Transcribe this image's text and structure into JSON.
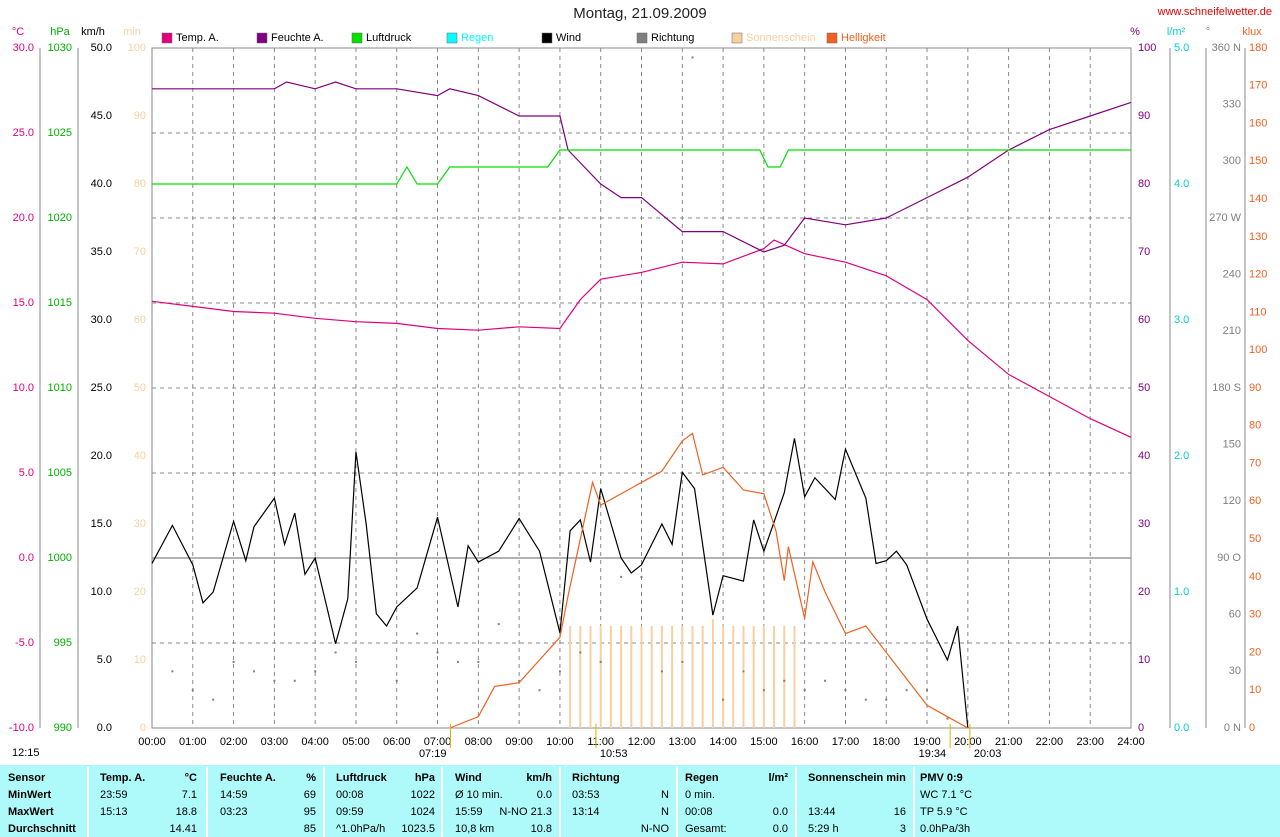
{
  "chart_data": {
    "type": "line",
    "title": "Montag, 21.09.2009",
    "source": "www.schneifelwetter.de",
    "corner_note": "12:15",
    "xlim": [
      0,
      24
    ],
    "xticks": [
      {
        "value": 0,
        "label": "00:00"
      },
      {
        "value": 1,
        "label": "01:00"
      },
      {
        "value": 2,
        "label": "02:00"
      },
      {
        "value": 3,
        "label": "03:00"
      },
      {
        "value": 4,
        "label": "04:00"
      },
      {
        "value": 5,
        "label": "05:00"
      },
      {
        "value": 6,
        "label": "06:00"
      },
      {
        "value": 7,
        "label": "07:00"
      },
      {
        "value": 8,
        "label": "08:00"
      },
      {
        "value": 9,
        "label": "09:00"
      },
      {
        "value": 10,
        "label": "10:00"
      },
      {
        "value": 11,
        "label": "11:00"
      },
      {
        "value": 12,
        "label": "12:00"
      },
      {
        "value": 13,
        "label": "13:00"
      },
      {
        "value": 14,
        "label": "14:00"
      },
      {
        "value": 15,
        "label": "15:00"
      },
      {
        "value": 16,
        "label": "16:00"
      },
      {
        "value": 17,
        "label": "17:00"
      },
      {
        "value": 18,
        "label": "18:00"
      },
      {
        "value": 19,
        "label": "19:00"
      },
      {
        "value": 20,
        "label": "20:00"
      },
      {
        "value": 21,
        "label": "21:00"
      },
      {
        "value": 22,
        "label": "22:00"
      },
      {
        "value": 23,
        "label": "23:00"
      },
      {
        "value": 24,
        "label": "24:00"
      }
    ],
    "grid": true,
    "annotations": [
      {
        "text": "07:19",
        "x": 7.317
      },
      {
        "text": "10:53",
        "x": 10.883
      },
      {
        "text": "19:34",
        "x": 19.567
      },
      {
        "text": "20:03",
        "x": 20.05
      }
    ],
    "axes": [
      {
        "label": "°C",
        "color": "#e0007f",
        "lim": [
          -10,
          30
        ],
        "ticks": [
          {
            "value": -10,
            "label": "-10.0"
          },
          {
            "value": -5,
            "label": "-5.0"
          },
          {
            "value": 0,
            "label": "0.0"
          },
          {
            "value": 5,
            "label": "5.0"
          },
          {
            "value": 10,
            "label": "10.0"
          },
          {
            "value": 15,
            "label": "15.0"
          },
          {
            "value": 20,
            "label": "20.0"
          },
          {
            "value": 25,
            "label": "25.0"
          },
          {
            "value": 30,
            "label": "30.0"
          }
        ]
      },
      {
        "label": "hPa",
        "color": "#00b000",
        "lim": [
          990,
          1030
        ],
        "ticks": [
          990,
          995,
          1000,
          1005,
          1010,
          1015,
          1020,
          1025,
          1030
        ]
      },
      {
        "label": "km/h",
        "color": "#000000",
        "lim": [
          0,
          50
        ],
        "ticks": [
          {
            "value": 0,
            "label": "0.0"
          },
          {
            "value": 5,
            "label": "5.0"
          },
          {
            "value": 10,
            "label": "10.0"
          },
          {
            "value": 15,
            "label": "15.0"
          },
          {
            "value": 20,
            "label": "20.0"
          },
          {
            "value": 25,
            "label": "25.0"
          },
          {
            "value": 30,
            "label": "30.0"
          },
          {
            "value": 35,
            "label": "35.0"
          },
          {
            "value": 40,
            "label": "40.0"
          },
          {
            "value": 45,
            "label": "45.0"
          },
          {
            "value": 50,
            "label": "50.0"
          }
        ]
      },
      {
        "label": "min",
        "color": "#f8d0a0",
        "lim": [
          0,
          100
        ],
        "ticks": [
          0,
          10,
          20,
          30,
          40,
          50,
          60,
          70,
          80,
          90,
          100
        ]
      },
      {
        "label": "%",
        "color": "#800080",
        "lim": [
          0,
          100
        ],
        "ticks": [
          0,
          10,
          20,
          30,
          40,
          50,
          60,
          70,
          80,
          90,
          100
        ]
      },
      {
        "label": "l/m²",
        "color": "#00d0d0",
        "lim": [
          0,
          5
        ],
        "ticks": [
          {
            "value": 0,
            "label": "0.0"
          },
          {
            "value": 1,
            "label": "1.0"
          },
          {
            "value": 2,
            "label": "2.0"
          },
          {
            "value": 3,
            "label": "3.0"
          },
          {
            "value": 4,
            "label": "4.0"
          },
          {
            "value": 5,
            "label": "5.0"
          }
        ]
      },
      {
        "label": "°",
        "color": "#808080",
        "lim": [
          0,
          360
        ],
        "ticks": [
          {
            "value": 0,
            "label": "0 N"
          },
          30,
          60,
          {
            "value": 90,
            "label": "90 O"
          },
          120,
          150,
          {
            "value": 180,
            "label": "180 S"
          },
          210,
          240,
          {
            "value": 270,
            "label": "270 W"
          },
          300,
          330,
          {
            "value": 360,
            "label": "360 N"
          }
        ]
      },
      {
        "label": "klux",
        "color": "#f06020",
        "lim": [
          0,
          180
        ],
        "ticks": [
          0,
          10,
          20,
          30,
          40,
          50,
          60,
          70,
          80,
          90,
          100,
          110,
          120,
          130,
          140,
          150,
          160,
          170,
          180
        ]
      }
    ],
    "series": [
      {
        "name": "Temp. A.",
        "color": "#e0007f",
        "axis": 0,
        "style": "line",
        "x": [
          0,
          1,
          2,
          3,
          4,
          5,
          6,
          7,
          8,
          9,
          10,
          10.5,
          11,
          12,
          13,
          14,
          15,
          15.25,
          16,
          17,
          18,
          19,
          20,
          21,
          22,
          23,
          24
        ],
        "values": [
          15.1,
          14.8,
          14.5,
          14.4,
          14.1,
          13.9,
          13.8,
          13.5,
          13.4,
          13.6,
          13.5,
          15.2,
          16.4,
          16.8,
          17.4,
          17.3,
          18.2,
          18.7,
          17.9,
          17.4,
          16.6,
          15.2,
          12.8,
          10.8,
          9.5,
          8.2,
          7.1
        ]
      },
      {
        "name": "Feuchte A.",
        "color": "#800080",
        "axis": 4,
        "style": "line",
        "x": [
          0,
          3,
          3.3,
          4,
          4.5,
          5,
          6,
          7,
          7.3,
          8,
          9,
          10,
          10.2,
          11,
          11.5,
          12,
          13,
          14,
          15,
          15.5,
          16,
          17,
          18,
          19,
          20,
          21,
          22,
          23,
          24
        ],
        "values": [
          94,
          94,
          95,
          94,
          95,
          94,
          94,
          93,
          94,
          93,
          90,
          90,
          85,
          80,
          78,
          78,
          73,
          73,
          70,
          71,
          75,
          74,
          75,
          78,
          81,
          85,
          88,
          90,
          92
        ]
      },
      {
        "name": "Luftdruck",
        "color": "#00e000",
        "axis": 1,
        "style": "line",
        "x": [
          0,
          6,
          6.25,
          6.5,
          7,
          7.3,
          9.7,
          10,
          14.9,
          15.1,
          15.4,
          15.6,
          24
        ],
        "values": [
          1022,
          1022,
          1023,
          1022,
          1022,
          1023,
          1023,
          1024,
          1024,
          1023,
          1023,
          1024,
          1024
        ]
      },
      {
        "name": "Regen",
        "color": "#00ffff",
        "axis": 5,
        "style": "line",
        "x": [],
        "values": []
      },
      {
        "name": "Wind",
        "color": "#000000",
        "axis": 2,
        "style": "line",
        "x": [
          0,
          0.5,
          1,
          1.25,
          1.5,
          2,
          2.3,
          2.5,
          3,
          3.25,
          3.5,
          3.75,
          4,
          4.5,
          4.8,
          5,
          5.25,
          5.5,
          5.75,
          6,
          6.5,
          7,
          7.5,
          7.75,
          8,
          8.5,
          9,
          9.5,
          10,
          10.25,
          10.5,
          10.75,
          11,
          11.5,
          11.75,
          12,
          12.5,
          12.75,
          13,
          13.3,
          13.75,
          14,
          14.5,
          14.75,
          15,
          15.5,
          15.75,
          16,
          16.25,
          16.75,
          17,
          17.5,
          17.75,
          18,
          18.25,
          18.5,
          19,
          19.5,
          19.75,
          20
        ],
        "values": [
          12.1,
          14.9,
          12.0,
          9.2,
          10.0,
          15.2,
          12.3,
          14.8,
          16.9,
          13.5,
          15.8,
          11.3,
          12.5,
          6.2,
          9.5,
          20.3,
          15.0,
          8.4,
          7.5,
          8.9,
          10.3,
          15.5,
          8.9,
          13.4,
          12.2,
          13.0,
          15.4,
          13.0,
          7.0,
          14.5,
          15.3,
          12.2,
          17.6,
          12.5,
          11.4,
          12.0,
          15.0,
          13.5,
          18.8,
          17.6,
          8.3,
          11.2,
          10.8,
          15.3,
          13.0,
          17.3,
          21.3,
          17.0,
          18.4,
          16.8,
          20.5,
          16.9,
          12.1,
          12.3,
          13.0,
          12.0,
          8.0,
          5.0,
          7.5,
          0
        ]
      },
      {
        "name": "Richtung",
        "color": "#808080",
        "axis": 6,
        "style": "dots",
        "x": [
          0.5,
          1,
          1.5,
          2,
          2.5,
          3,
          3.5,
          4,
          4.5,
          5,
          6,
          6.5,
          7,
          7.5,
          8,
          8.5,
          9,
          9.5,
          10,
          10.5,
          11,
          11.5,
          12,
          12.5,
          13,
          13.25,
          14,
          14.5,
          15,
          15.5,
          16,
          16.5,
          17,
          17.5,
          18,
          18.5,
          19,
          19.5
        ],
        "values": [
          30,
          20,
          15,
          35,
          30,
          25,
          25,
          30,
          40,
          35,
          25,
          50,
          40,
          35,
          35,
          55,
          25,
          20,
          30,
          40,
          35,
          80,
          80,
          30,
          35,
          355,
          15,
          30,
          20,
          25,
          20,
          25,
          20,
          15,
          15,
          20,
          20,
          5
        ]
      },
      {
        "name": "Sonnenschein",
        "color": "#f8d0a0",
        "axis": 3,
        "style": "bars",
        "x": [
          10.25,
          10.5,
          10.75,
          11,
          11.25,
          11.5,
          11.75,
          12,
          12.25,
          12.5,
          12.75,
          13,
          13.25,
          13.5,
          13.75,
          14,
          14.25,
          14.5,
          14.75,
          15,
          15.25,
          15.5,
          15.75
        ],
        "values": [
          15,
          15,
          15,
          15,
          15,
          15,
          15,
          15,
          15,
          15,
          15,
          15,
          15,
          15,
          16,
          15,
          15,
          15,
          15,
          15,
          15,
          15,
          15
        ]
      },
      {
        "name": "Helligkeit",
        "color": "#f06020",
        "axis": 7,
        "style": "line",
        "x": [
          7.3,
          8,
          8.4,
          9,
          9.5,
          10,
          10.2,
          10.8,
          11,
          11.5,
          12,
          12.5,
          13,
          13.25,
          13.5,
          14,
          14.5,
          15,
          15.3,
          15.5,
          15.6,
          16,
          16.2,
          16.5,
          17,
          17.5,
          18,
          18.5,
          19,
          19.5,
          20
        ],
        "values": [
          0,
          3,
          11,
          12,
          18,
          24,
          35,
          65,
          59,
          62,
          65,
          68,
          76,
          78,
          67,
          69,
          63,
          62,
          52,
          39,
          48,
          29,
          44,
          36,
          25,
          27,
          20,
          13,
          6,
          3,
          0
        ]
      }
    ],
    "table": {
      "rows": [
        [
          "Sensor",
          "Temp. A.",
          "°C",
          "Feuchte A.",
          "%",
          "Luftdruck",
          "hPa",
          "Wind",
          "km/h",
          "Richtung",
          null,
          "Regen",
          "l/m²",
          "Sonnenschein min",
          null,
          "PMV 0:9"
        ],
        [
          "MinWert",
          "23:59",
          "7.1",
          "14:59",
          "69",
          "00:08",
          "1022",
          "Ø 10 min.",
          "0.0",
          "03:53",
          "N",
          "0 min.",
          null,
          null,
          null,
          "WC 7.1 °C"
        ],
        [
          "MaxWert",
          "15:13",
          "18.8",
          "03:23",
          "95",
          "09:59",
          "1024",
          "15:59",
          "N-NO 21.3",
          "13:14",
          "N",
          "00:08",
          "0.0",
          "13:44",
          "16",
          "TP 5.9 °C"
        ],
        [
          "Durchschnitt",
          null,
          "14.41",
          null,
          "85",
          "^1.0hPa/h",
          "1023.5",
          "10,8 km",
          "10.8",
          null,
          "N-NO",
          "Gesamt:",
          "0.0",
          "5:29 h",
          "3",
          "0.0hPa/3h"
        ]
      ]
    }
  }
}
